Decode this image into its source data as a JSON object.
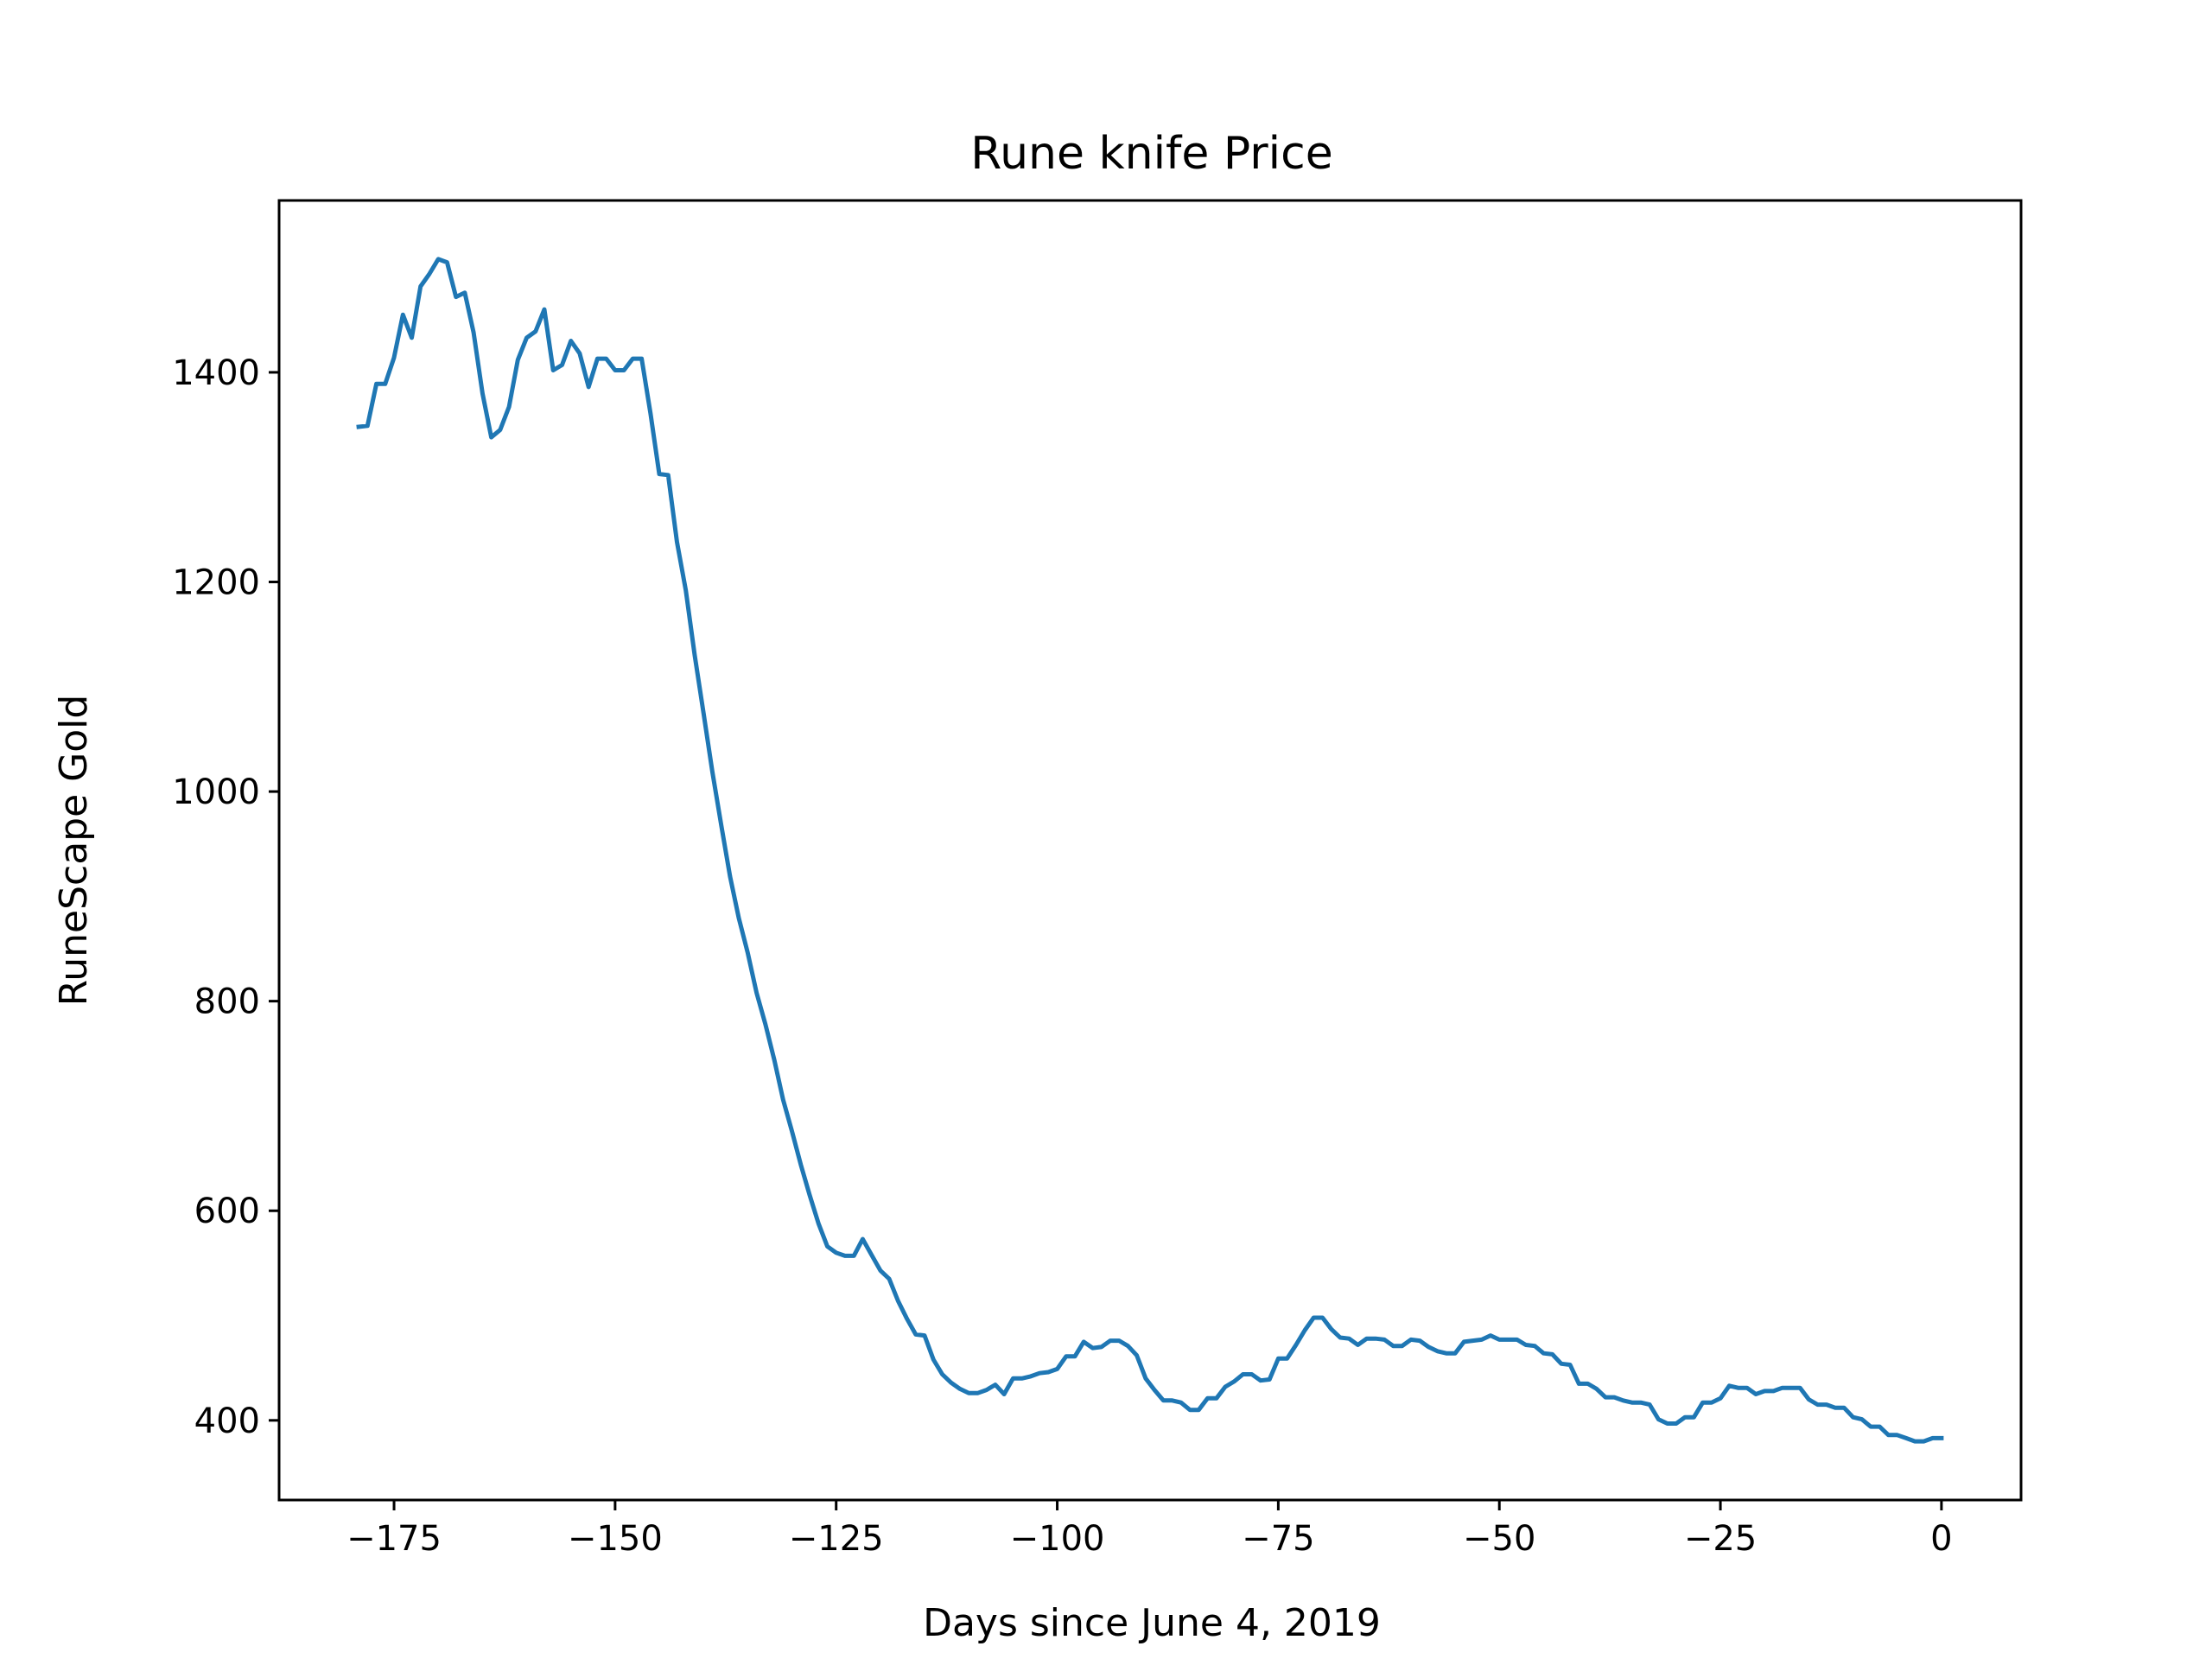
{
  "chart_data": {
    "type": "line",
    "title": "Rune knife Price",
    "xlabel": "Days since June 4, 2019",
    "ylabel": "RuneScape Gold",
    "xlim": [
      -188,
      9
    ],
    "ylim": [
      324,
      1564
    ],
    "xticks": [
      -175,
      -150,
      -125,
      -100,
      -75,
      -50,
      -25,
      0
    ],
    "xtick_labels": [
      "−175",
      "−150",
      "−125",
      "−100",
      "−75",
      "−50",
      "−25",
      "0"
    ],
    "yticks": [
      400,
      600,
      800,
      1000,
      1200,
      1400
    ],
    "ytick_labels": [
      "400",
      "600",
      "800",
      "1000",
      "1200",
      "1400"
    ],
    "grid": false,
    "line_color": "#1f77b4",
    "series": [
      {
        "x": [
          -179,
          -178,
          -177,
          -176,
          -175,
          -174,
          -173,
          -172,
          -171,
          -170,
          -169,
          -168,
          -167,
          -166,
          -165,
          -164,
          -163,
          -162,
          -161,
          -160,
          -159,
          -158,
          -157,
          -156,
          -155,
          -154,
          -153,
          -152,
          -151,
          -150,
          -149,
          -148,
          -147,
          -146,
          -145,
          -144,
          -143,
          -142,
          -141,
          -140,
          -139,
          -138,
          -137,
          -136,
          -135,
          -134,
          -133,
          -132,
          -131,
          -130,
          -129,
          -128,
          -127,
          -126,
          -125,
          -124,
          -123,
          -122,
          -121,
          -120,
          -119,
          -118,
          -117,
          -116,
          -115,
          -114,
          -113,
          -112,
          -111,
          -110,
          -109,
          -108,
          -107,
          -106,
          -105,
          -104,
          -103,
          -102,
          -101,
          -100,
          -99,
          -98,
          -97,
          -96,
          -95,
          -94,
          -93,
          -92,
          -91,
          -90,
          -89,
          -88,
          -87,
          -86,
          -85,
          -84,
          -83,
          -82,
          -81,
          -80,
          -79,
          -78,
          -77,
          -76,
          -75,
          -74,
          -73,
          -72,
          -71,
          -70,
          -69,
          -68,
          -67,
          -66,
          -65,
          -64,
          -63,
          -62,
          -61,
          -60,
          -59,
          -58,
          -57,
          -56,
          -55,
          -54,
          -53,
          -52,
          -51,
          -50,
          -49,
          -48,
          -47,
          -46,
          -45,
          -44,
          -43,
          -42,
          -41,
          -40,
          -39,
          -38,
          -37,
          -36,
          -35,
          -34,
          -33,
          -32,
          -31,
          -30,
          -29,
          -28,
          -27,
          -26,
          -25,
          -24,
          -23,
          -22,
          -21,
          -20,
          -19,
          -18,
          -17,
          -16,
          -15,
          -14,
          -13,
          -12,
          -11,
          -10,
          -9,
          -8,
          -7,
          -6,
          -5,
          -4,
          -3,
          -2,
          -1,
          0
        ],
        "y": [
          1348,
          1349,
          1389,
          1389,
          1414,
          1455,
          1433,
          1482,
          1494,
          1508,
          1505,
          1472,
          1476,
          1438,
          1380,
          1338,
          1345,
          1367,
          1412,
          1433,
          1439,
          1460,
          1402,
          1407,
          1430,
          1418,
          1386,
          1413,
          1413,
          1402,
          1402,
          1413,
          1413,
          1361,
          1303,
          1302,
          1238,
          1192,
          1130,
          1075,
          1019,
          968,
          919,
          879,
          846,
          808,
          778,
          744,
          706,
          676,
          644,
          615,
          588,
          566,
          560,
          557,
          557,
          573,
          558,
          543,
          535,
          514,
          497,
          482,
          481,
          458,
          444,
          436,
          430,
          426,
          426,
          429,
          434,
          425,
          440,
          440,
          442,
          445,
          446,
          449,
          461,
          461,
          475,
          469,
          470,
          476,
          476,
          471,
          462,
          440,
          429,
          419,
          419,
          417,
          410,
          410,
          421,
          421,
          432,
          437,
          444,
          444,
          438,
          439,
          459,
          459,
          472,
          486,
          498,
          498,
          487,
          479,
          478,
          472,
          478,
          478,
          477,
          471,
          471,
          477,
          476,
          470,
          466,
          464,
          464,
          475,
          476,
          477,
          481,
          477,
          477,
          477,
          472,
          471,
          464,
          463,
          454,
          453,
          435,
          435,
          430,
          422,
          422,
          419,
          417,
          417,
          415,
          401,
          397,
          397,
          403,
          403,
          417,
          417,
          421,
          433,
          431,
          431,
          425,
          428,
          428,
          431,
          431,
          431,
          420,
          415,
          415,
          412,
          412,
          403,
          401,
          394,
          394,
          386,
          386,
          383,
          380,
          380,
          383,
          383
        ]
      }
    ]
  }
}
